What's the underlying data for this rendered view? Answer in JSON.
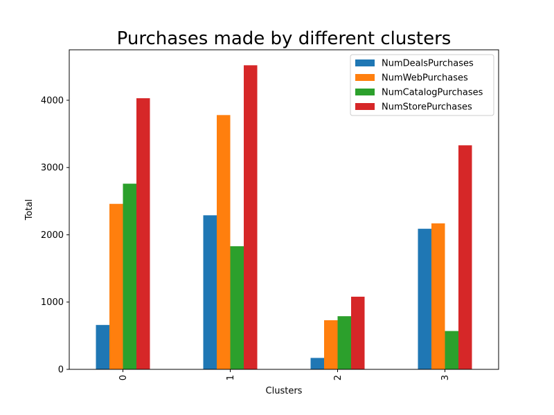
{
  "chart_data": {
    "type": "bar",
    "title": "Purchases made by different clusters",
    "xlabel": "Clusters",
    "ylabel": "Total",
    "categories": [
      "0",
      "1",
      "2",
      "3"
    ],
    "series": [
      {
        "name": "NumDealsPurchases",
        "color": "#1f77b4",
        "values": [
          660,
          2290,
          170,
          2090
        ]
      },
      {
        "name": "NumWebPurchases",
        "color": "#ff7f0e",
        "values": [
          2460,
          3780,
          730,
          2170
        ]
      },
      {
        "name": "NumCatalogPurchases",
        "color": "#2ca02c",
        "values": [
          2760,
          1830,
          790,
          570
        ]
      },
      {
        "name": "NumStorePurchases",
        "color": "#d62728",
        "values": [
          4030,
          4520,
          1080,
          3330
        ]
      }
    ],
    "ylim": [
      0,
      4750
    ],
    "yticks": [
      0,
      1000,
      2000,
      3000,
      4000
    ],
    "grid": false,
    "legend_position": "top-right",
    "xtick_rotation": "vertical"
  }
}
